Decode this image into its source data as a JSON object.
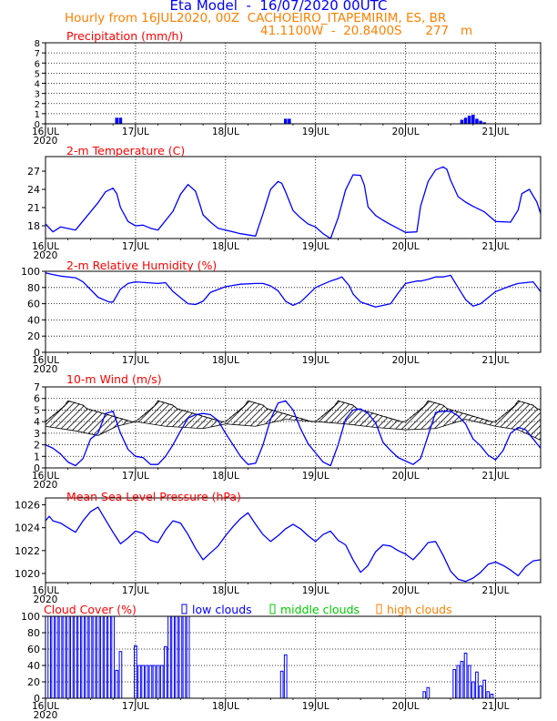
{
  "header": {
    "title": "Eta Model  -  16/07/2020 00UTC",
    "subtitle": "Hourly from 16JUL2020, 00Z  CACHOEIRO_ITAPEMIRIM, ES, BR",
    "coordinates": "41.1100W  -  20.8400S      277   m"
  },
  "colors": {
    "title": "#0000ff",
    "header": "#ff8000",
    "panel_title": "#ff0000",
    "series": "#0000ff",
    "low_clouds": "#0000ff",
    "middle_clouds": "#00cc00",
    "high_clouds": "#ff8000"
  },
  "chart_data": [
    {
      "id": "precip",
      "type": "bar",
      "title": "Precipitation (mm/h)",
      "x_unit": "hours since 16JUL2020 00Z",
      "xlim": [
        0,
        132
      ],
      "ylim": [
        0,
        8
      ],
      "yticks": [
        0,
        1,
        2,
        3,
        4,
        5,
        6,
        7,
        8
      ],
      "x_tick_labels": [
        "16JUL",
        "17JUL",
        "18JUL",
        "19JUL",
        "20JUL",
        "21JUL"
      ],
      "x_year_label": "2020",
      "x": [
        19,
        20,
        64,
        65,
        111,
        112,
        113,
        114,
        115,
        116,
        117
      ],
      "values": [
        0.6,
        0.6,
        0.5,
        0.5,
        0.4,
        0.6,
        0.8,
        0.9,
        0.5,
        0.3,
        0.15
      ]
    },
    {
      "id": "temp",
      "type": "line",
      "title": "2-m Temperature (C)",
      "xlim": [
        0,
        132
      ],
      "ylim": [
        15.9,
        29.4
      ],
      "yticks": [
        18,
        21,
        24,
        27
      ],
      "x_tick_labels": [
        "16JUL",
        "17JUL",
        "18JUL",
        "19JUL",
        "20JUL",
        "21JUL"
      ],
      "x_year_label": "2020",
      "x": [
        0,
        2,
        4,
        8,
        12,
        14,
        16,
        18,
        19,
        20,
        22,
        24,
        26,
        28,
        30,
        34,
        36,
        38,
        40,
        41,
        42,
        44,
        46,
        48,
        52,
        56,
        58,
        60,
        62,
        63,
        64,
        66,
        68,
        70,
        72,
        74,
        76,
        78,
        80,
        82,
        84,
        85,
        86,
        88,
        90,
        92,
        96,
        99,
        100,
        102,
        104,
        106,
        107,
        108,
        110,
        112,
        114,
        117,
        120,
        124,
        126,
        127,
        129,
        131,
        132
      ],
      "values": [
        18.3,
        17.0,
        17.8,
        17.3,
        20.3,
        21.8,
        23.6,
        24.2,
        23.3,
        21.0,
        18.7,
        18.0,
        18.1,
        17.6,
        17.3,
        20.4,
        23.2,
        24.8,
        23.7,
        21.8,
        19.8,
        18.6,
        17.6,
        17.3,
        16.7,
        16.3,
        20.0,
        24.0,
        25.3,
        25.0,
        23.6,
        20.5,
        19.3,
        18.3,
        17.8,
        16.7,
        15.9,
        19.3,
        23.9,
        26.4,
        26.3,
        24.7,
        21.1,
        19.7,
        18.9,
        18.2,
        16.9,
        17.0,
        21.2,
        25.3,
        27.2,
        27.7,
        27.3,
        25.5,
        22.8,
        21.9,
        21.2,
        20.3,
        18.7,
        18.6,
        20.6,
        23.3,
        24.0,
        21.9,
        20.0
      ]
    },
    {
      "id": "rh",
      "type": "line",
      "title": "2-m Relative Humidity (%)",
      "xlim": [
        0,
        132
      ],
      "ylim": [
        0,
        100
      ],
      "yticks": [
        0,
        20,
        40,
        60,
        80,
        100
      ],
      "x_tick_labels": [
        "16JUL",
        "17JUL",
        "18JUL",
        "19JUL",
        "20JUL",
        "21JUL"
      ],
      "x_year_label": "2020",
      "x": [
        0,
        2,
        4,
        8,
        10,
        14,
        17,
        18,
        20,
        22,
        24,
        30,
        32,
        34,
        38,
        40,
        42,
        44,
        48,
        52,
        56,
        58,
        60,
        62,
        64,
        66,
        68,
        72,
        76,
        78,
        79,
        81,
        82,
        84,
        88,
        92,
        94,
        96,
        99,
        100,
        102,
        104,
        106,
        108,
        110,
        112,
        114,
        116,
        120,
        124,
        126,
        128,
        130,
        132
      ],
      "values": [
        98,
        96,
        94,
        92,
        87,
        68,
        62,
        62,
        78,
        85,
        87,
        85,
        86,
        75,
        60,
        59,
        63,
        74,
        81,
        84,
        85,
        85,
        82,
        76,
        63,
        58,
        62,
        80,
        88,
        91,
        93,
        82,
        72,
        62,
        56,
        60,
        73,
        85,
        88,
        88,
        90,
        93,
        93,
        95,
        80,
        65,
        57,
        60,
        75,
        82,
        85,
        86,
        87,
        75
      ]
    },
    {
      "id": "wind",
      "type": "line",
      "title": "10-m Wind (m/s)",
      "xlim": [
        0,
        132
      ],
      "ylim": [
        0,
        7
      ],
      "yticks": [
        0,
        1,
        2,
        3,
        4,
        5,
        6,
        7
      ],
      "x_tick_labels": [
        "16JUL",
        "17JUL",
        "18JUL",
        "19JUL",
        "20JUL",
        "21JUL"
      ],
      "x_year_label": "2020",
      "x": [
        0,
        2,
        4,
        6,
        8,
        10,
        12,
        14,
        16,
        18,
        20,
        22,
        24,
        26,
        28,
        30,
        32,
        34,
        36,
        38,
        40,
        42,
        44,
        46,
        48,
        50,
        52,
        54,
        56,
        58,
        60,
        62,
        64,
        66,
        68,
        70,
        72,
        74,
        76,
        78,
        80,
        82,
        84,
        86,
        88,
        90,
        92,
        94,
        96,
        98,
        100,
        102,
        104,
        106,
        108,
        110,
        112,
        114,
        116,
        118,
        120,
        122,
        124,
        126,
        128,
        130,
        132
      ],
      "values": [
        2.0,
        1.7,
        1.2,
        0.5,
        0.2,
        0.8,
        2.5,
        3.0,
        4.7,
        4.9,
        3.0,
        1.6,
        1.0,
        0.9,
        0.3,
        0.3,
        1.0,
        2.0,
        3.2,
        4.3,
        4.6,
        4.7,
        4.6,
        4.1,
        3.0,
        2.0,
        1.0,
        0.3,
        0.4,
        2.0,
        4.2,
        5.6,
        5.8,
        5.0,
        3.4,
        2.1,
        1.3,
        0.5,
        0.2,
        2.0,
        4.2,
        5.0,
        5.1,
        4.7,
        3.9,
        2.2,
        1.5,
        0.9,
        0.6,
        0.3,
        0.8,
        2.8,
        4.8,
        4.9,
        4.9,
        4.5,
        3.8,
        2.5,
        1.9,
        1.1,
        0.7,
        1.5,
        3.0,
        3.5,
        3.3,
        2.5,
        1.7
      ]
    },
    {
      "id": "mslp",
      "type": "line",
      "title": "Mean Sea Level Pressure (hPa)",
      "xlim": [
        0,
        132
      ],
      "ylim": [
        1019.2,
        1026.6
      ],
      "yticks": [
        1020,
        1022,
        1024,
        1026
      ],
      "x_tick_labels": [
        "16JUL",
        "17JUL",
        "18JUL",
        "19JUL",
        "20JUL",
        "21JUL"
      ],
      "x_year_label": "2020",
      "x": [
        0,
        1,
        2,
        4,
        6,
        8,
        10,
        12,
        14,
        16,
        18,
        20,
        22,
        24,
        26,
        28,
        30,
        32,
        34,
        36,
        38,
        40,
        42,
        44,
        46,
        48,
        50,
        52,
        54,
        56,
        58,
        60,
        62,
        64,
        66,
        68,
        70,
        72,
        74,
        76,
        78,
        80,
        82,
        84,
        86,
        88,
        90,
        92,
        94,
        96,
        98,
        100,
        102,
        104,
        106,
        108,
        110,
        112,
        114,
        116,
        118,
        120,
        122,
        124,
        126,
        128,
        130,
        132
      ],
      "values": [
        1024.6,
        1025.0,
        1024.6,
        1024.4,
        1024.0,
        1023.6,
        1024.6,
        1025.4,
        1025.8,
        1024.7,
        1023.6,
        1022.6,
        1023.1,
        1023.7,
        1023.5,
        1022.9,
        1022.7,
        1023.8,
        1024.6,
        1024.4,
        1023.4,
        1022.2,
        1021.2,
        1021.8,
        1022.4,
        1023.3,
        1024.1,
        1024.8,
        1025.3,
        1024.3,
        1023.4,
        1022.8,
        1023.3,
        1023.9,
        1024.3,
        1023.9,
        1023.3,
        1022.8,
        1023.4,
        1023.7,
        1022.9,
        1022.5,
        1021.2,
        1020.1,
        1020.7,
        1021.9,
        1022.5,
        1022.4,
        1022.0,
        1021.7,
        1021.2,
        1021.9,
        1022.7,
        1022.8,
        1021.6,
        1020.2,
        1019.5,
        1019.3,
        1019.6,
        1020.1,
        1020.8,
        1021.0,
        1020.7,
        1020.3,
        1019.8,
        1020.6,
        1021.1,
        1021.2
      ]
    },
    {
      "id": "cloud",
      "type": "bar",
      "title": "Cloud Cover (%)",
      "legend": [
        "low clouds",
        "middle clouds",
        "high clouds"
      ],
      "xlim": [
        0,
        132
      ],
      "ylim": [
        0,
        100
      ],
      "yticks": [
        0,
        20,
        40,
        60,
        80,
        100
      ],
      "x_tick_labels": [
        "16JUL",
        "17JUL",
        "18JUL",
        "19JUL",
        "20JUL",
        "21JUL"
      ],
      "x_year_label": "2020",
      "x": [
        1,
        2,
        3,
        4,
        5,
        6,
        7,
        8,
        9,
        10,
        11,
        12,
        13,
        14,
        15,
        16,
        17,
        18,
        19,
        20,
        24,
        25,
        26,
        27,
        28,
        29,
        30,
        31,
        32,
        33,
        34,
        35,
        36,
        37,
        38,
        63,
        64,
        101,
        102,
        109,
        110,
        111,
        112,
        113,
        114,
        115,
        116,
        117,
        118,
        119
      ],
      "values": [
        100,
        100,
        100,
        100,
        100,
        100,
        100,
        100,
        100,
        100,
        100,
        100,
        100,
        100,
        100,
        100,
        100,
        100,
        34,
        57,
        64,
        40,
        40,
        40,
        40,
        40,
        40,
        40,
        63,
        100,
        100,
        100,
        100,
        100,
        100,
        33,
        53,
        8,
        13,
        35,
        40,
        45,
        55,
        40,
        20,
        32,
        15,
        22,
        8,
        5
      ]
    }
  ]
}
